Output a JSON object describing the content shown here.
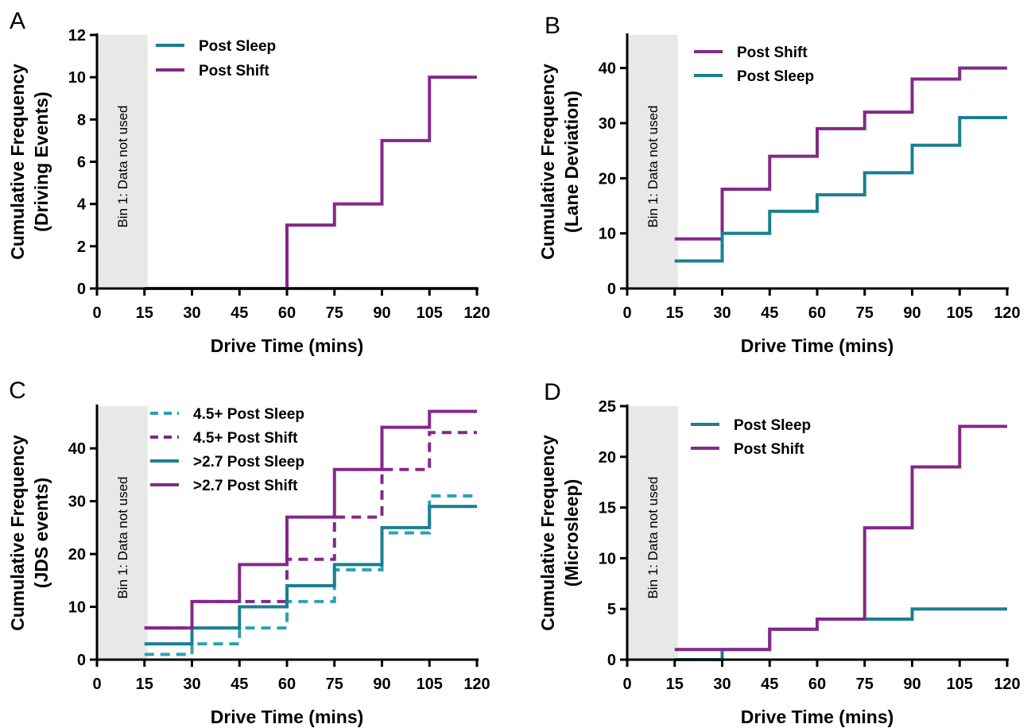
{
  "colors": {
    "post_sleep": "#1a8090",
    "post_shift": "#84288a",
    "post_sleep_dashed": "#2aa2b7",
    "shade": "#e8e8e8",
    "axis": "#000000"
  },
  "chart_data": [
    {
      "panel": "A",
      "type": "line",
      "step": true,
      "xlabel": "Drive Time (mins)",
      "ylabel": [
        "Cumulative Frequency",
        "(Driving Events)"
      ],
      "xlim": [
        0,
        120
      ],
      "ylim": [
        0,
        12
      ],
      "xticks": [
        0,
        15,
        30,
        45,
        60,
        75,
        90,
        105,
        120
      ],
      "yticks": [
        0,
        2,
        4,
        6,
        8,
        10,
        12
      ],
      "shaded_region": {
        "x": [
          0,
          16
        ],
        "label": "Bin 1: Data not used"
      },
      "series": [
        {
          "name": "Post Sleep",
          "color_key": "post_sleep",
          "dashed": false,
          "x": [
            15,
            120
          ],
          "y": [
            0,
            0
          ]
        },
        {
          "name": "Post Shift",
          "color_key": "post_shift",
          "dashed": false,
          "x": [
            15,
            60,
            75,
            90,
            105,
            120
          ],
          "y": [
            0,
            3,
            4,
            7,
            10,
            10
          ]
        }
      ]
    },
    {
      "panel": "B",
      "type": "line",
      "step": true,
      "xlabel": "Drive Time (mins)",
      "ylabel": [
        "Cumulative Frequency",
        "(Lane Deviation)"
      ],
      "xlim": [
        0,
        120
      ],
      "ylim": [
        0,
        46
      ],
      "xticks": [
        0,
        15,
        30,
        45,
        60,
        75,
        90,
        105,
        120
      ],
      "yticks": [
        0,
        10,
        20,
        30,
        40
      ],
      "shaded_region": {
        "x": [
          0,
          16
        ],
        "label": "Bin 1: Data not used"
      },
      "series": [
        {
          "name": "Post Shift",
          "color_key": "post_shift",
          "dashed": false,
          "x": [
            15,
            30,
            45,
            60,
            75,
            90,
            105,
            120
          ],
          "y": [
            9,
            18,
            24,
            29,
            32,
            38,
            40,
            40
          ]
        },
        {
          "name": "Post Sleep",
          "color_key": "post_sleep",
          "dashed": false,
          "x": [
            15,
            30,
            45,
            60,
            75,
            90,
            105,
            120
          ],
          "y": [
            5,
            10,
            14,
            17,
            21,
            26,
            31,
            31
          ]
        }
      ]
    },
    {
      "panel": "C",
      "type": "line",
      "step": true,
      "xlabel": "Drive Time (mins)",
      "ylabel": [
        "Cumulative Frequency",
        "(JDS events)"
      ],
      "xlim": [
        0,
        120
      ],
      "ylim": [
        0,
        48
      ],
      "xticks": [
        0,
        15,
        30,
        45,
        60,
        75,
        90,
        105,
        120
      ],
      "yticks": [
        0,
        10,
        20,
        30,
        40
      ],
      "shaded_region": {
        "x": [
          0,
          16
        ],
        "label": "Bin 1: Data not used"
      },
      "series": [
        {
          "name": "4.5+ Post Sleep",
          "color_key": "post_sleep_dashed",
          "dashed": true,
          "x": [
            15,
            30,
            45,
            60,
            75,
            90,
            105,
            120
          ],
          "y": [
            1,
            3,
            6,
            11,
            17,
            24,
            31,
            31
          ]
        },
        {
          "name": "4.5+ Post Shift",
          "color_key": "post_shift",
          "dashed": true,
          "x": [
            15,
            30,
            45,
            60,
            75,
            90,
            105,
            120
          ],
          "y": [
            6,
            11,
            11,
            19,
            27,
            36,
            43,
            43
          ]
        },
        {
          "name": ">2.7 Post Sleep",
          "color_key": "post_sleep",
          "dashed": false,
          "x": [
            15,
            30,
            45,
            60,
            75,
            90,
            105,
            120
          ],
          "y": [
            3,
            6,
            10,
            14,
            18,
            25,
            29,
            29
          ]
        },
        {
          "name": ">2.7 Post Shift",
          "color_key": "post_shift",
          "dashed": false,
          "x": [
            15,
            30,
            45,
            60,
            75,
            90,
            105,
            120
          ],
          "y": [
            6,
            11,
            18,
            27,
            36,
            44,
            47,
            47
          ]
        }
      ]
    },
    {
      "panel": "D",
      "type": "line",
      "step": true,
      "xlabel": "Drive Time (mins)",
      "ylabel": [
        "Cumulative Frequency",
        "(Microsleep)"
      ],
      "xlim": [
        0,
        120
      ],
      "ylim": [
        0,
        25
      ],
      "xticks": [
        0,
        15,
        30,
        45,
        60,
        75,
        90,
        105,
        120
      ],
      "yticks": [
        0,
        5,
        10,
        15,
        20,
        25
      ],
      "shaded_region": {
        "x": [
          0,
          16
        ],
        "label": "Bin 1: Data not used"
      },
      "series": [
        {
          "name": "Post Sleep",
          "color_key": "post_sleep",
          "dashed": false,
          "x": [
            15,
            30,
            45,
            60,
            75,
            90,
            105,
            120
          ],
          "y": [
            0,
            1,
            3,
            4,
            4,
            5,
            5,
            5
          ]
        },
        {
          "name": "Post Shift",
          "color_key": "post_shift",
          "dashed": false,
          "x": [
            15,
            30,
            45,
            60,
            75,
            90,
            105,
            120
          ],
          "y": [
            1,
            1,
            3,
            4,
            13,
            19,
            23,
            23
          ]
        }
      ]
    }
  ]
}
